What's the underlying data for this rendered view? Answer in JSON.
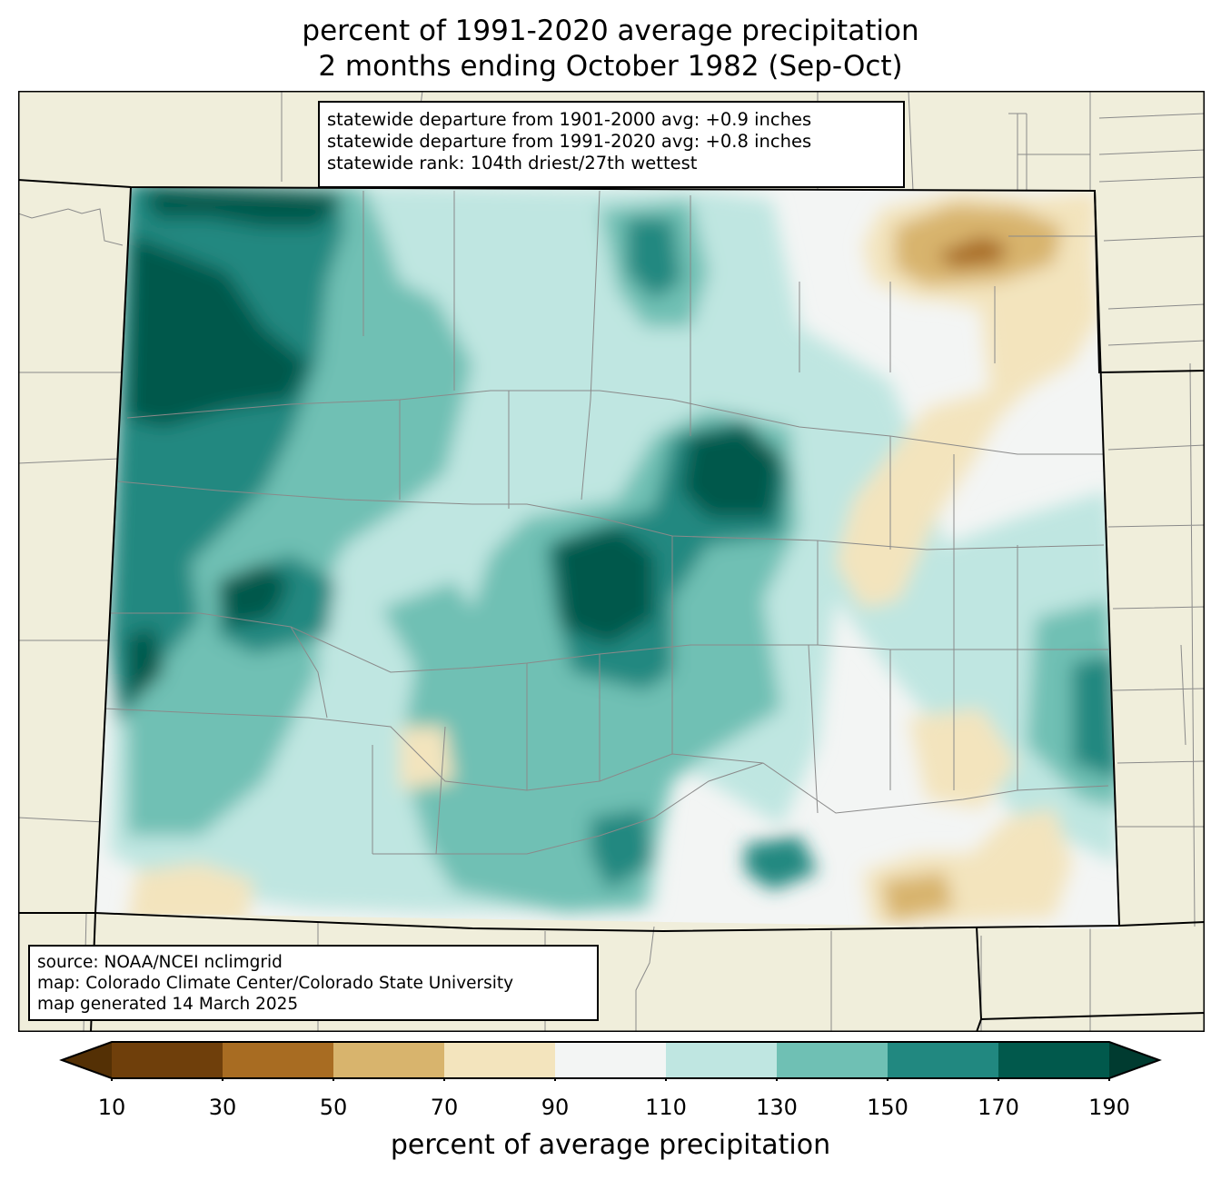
{
  "title": {
    "line1": "percent of 1991-2020 average precipitation",
    "line2": "2 months ending October 1982 (Sep-Oct)"
  },
  "stats": {
    "line1": "statewide departure from 1901-2000 avg: +0.9 inches",
    "line2": "statewide departure from 1991-2020 avg: +0.8 inches",
    "line3": "statewide rank: 104th driest/27th wettest"
  },
  "source": {
    "line1": "source: NOAA/NCEI nclimgrid",
    "line2": "map: Colorado Climate Center/Colorado State University",
    "line3": "map generated 14 March 2025"
  },
  "colorbar": {
    "label": "percent of average precipitation",
    "ticks": [
      "10",
      "30",
      "50",
      "70",
      "90",
      "110",
      "130",
      "150",
      "170",
      "190"
    ],
    "colors": {
      "under": "#543005",
      "c10_30": "#6f3f0b",
      "c30_50": "#a86c22",
      "c50_70": "#d8b46d",
      "c70_90": "#f3e4bd",
      "c90_110": "#f3f5f4",
      "c110_130": "#bfe6e1",
      "c130_150": "#6fc0b4",
      "c150_170": "#218880",
      "c170_190": "#01594c",
      "over": "#003b30"
    }
  },
  "map": {
    "land_color": "#f0eedb",
    "region": "Colorado"
  }
}
